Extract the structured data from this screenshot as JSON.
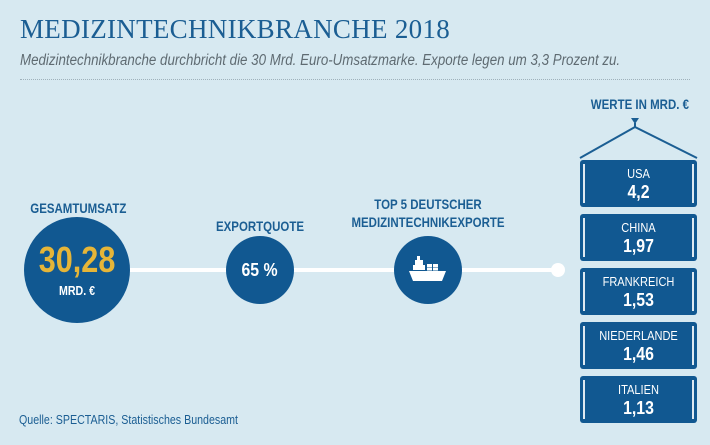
{
  "title": "MEDIZINTECHNIKBRANCHE 2018",
  "subtitle": "Medizintechnikbranche durchbricht die 30 Mrd. Euro-Umsatzmarke. Exporte legen um 3,3 Prozent zu.",
  "total": {
    "label": "GESAMTUMSATZ",
    "value": "30,28",
    "unit": "MRD. €"
  },
  "export_quota": {
    "label": "EXPORTQUOTE",
    "value": "65 %"
  },
  "top5": {
    "label_line1": "TOP 5 DEUTSCHER",
    "label_line2": "MEDIZINTECHNIKEXPORTE",
    "icon": "ship-icon"
  },
  "values_header": "WERTE IN MRD. €",
  "countries": [
    {
      "name": "USA",
      "value": "4,2"
    },
    {
      "name": "CHINA",
      "value": "1,97"
    },
    {
      "name": "FRANKREICH",
      "value": "1,53"
    },
    {
      "name": "NIEDERLANDE",
      "value": "1,46"
    },
    {
      "name": "ITALIEN",
      "value": "1,13"
    }
  ],
  "source": "Quelle: SPECTARIS, Statistisches Bundesamt",
  "colors": {
    "navy": "#115891",
    "gold": "#e6b538",
    "background": "#d7e9f1",
    "text_blue": "#1b5e93"
  }
}
